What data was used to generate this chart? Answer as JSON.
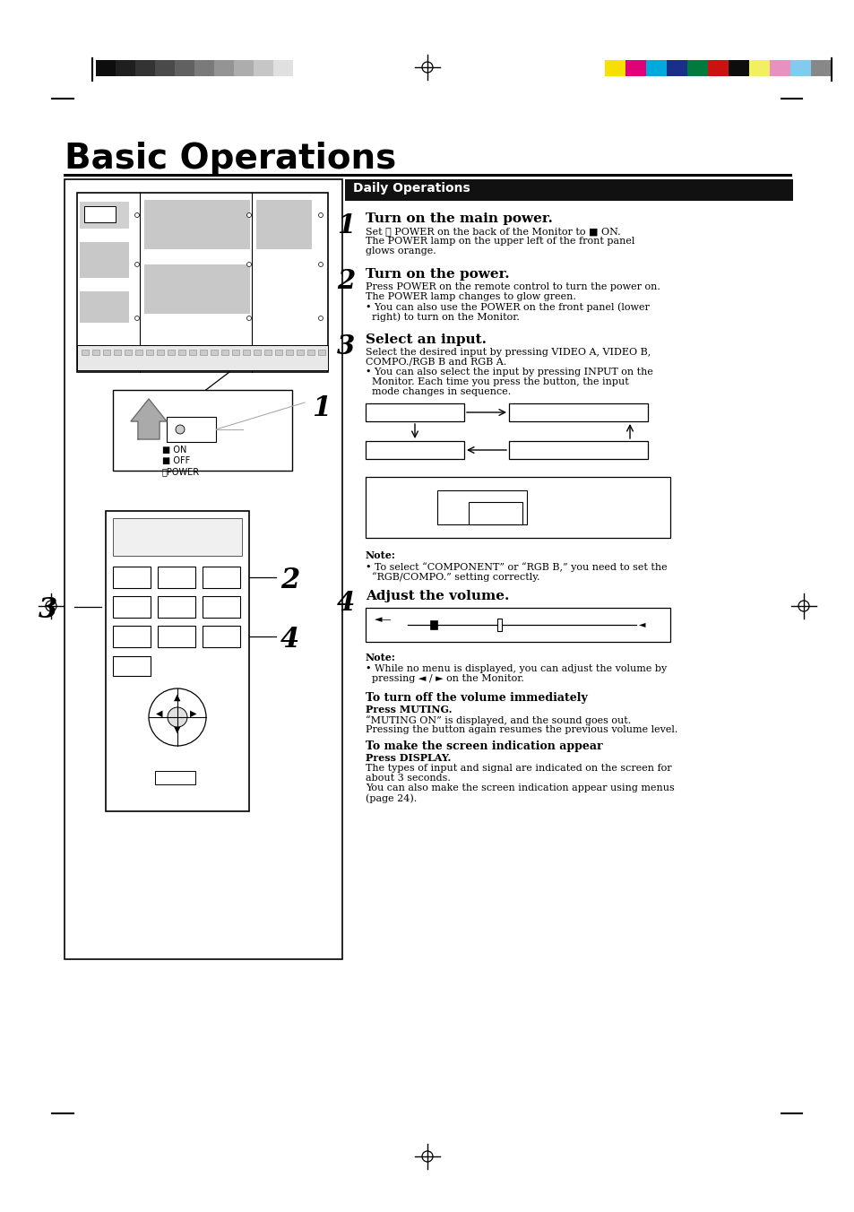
{
  "page_bg": "#ffffff",
  "title": "Basic Operations",
  "section_header": "Daily Operations",
  "section_header_bg": "#111111",
  "section_header_color": "#ffffff",
  "grayscale_colors": [
    "#0d0d0d",
    "#1f1f1f",
    "#333333",
    "#4a4a4a",
    "#616161",
    "#7a7a7a",
    "#949494",
    "#adadad",
    "#c6c6c6",
    "#e0e0e0"
  ],
  "color_bars": [
    "#f5e000",
    "#e0007a",
    "#00aadd",
    "#1a2f8a",
    "#007a3d",
    "#cc1111",
    "#0d0d0d",
    "#f0f060",
    "#e890c0",
    "#80ccee",
    "#888888"
  ],
  "steps": [
    {
      "num": "1",
      "heading": "Turn on the main power.",
      "body1": "Set ⓘ POWER on the back of the Monitor to ■ ON.",
      "body2": "The POWER lamp on the upper left of the front panel",
      "body3": "glows orange.",
      "body4": "",
      "body5": ""
    },
    {
      "num": "2",
      "heading": "Turn on the power.",
      "body1": "Press POWER on the remote control to turn the power on.",
      "body2": "The POWER lamp changes to glow green.",
      "body3": "• You can also use the POWER on the front panel (lower",
      "body4": "  right) to turn on the Monitor.",
      "body5": ""
    },
    {
      "num": "3",
      "heading": "Select an input.",
      "body1": "Select the desired input by pressing VIDEO A, VIDEO B,",
      "body2": "COMPO./RGB B and RGB A.",
      "body3": "• You can also select the input by pressing INPUT on the",
      "body4": "  Monitor. Each time you press the button, the input",
      "body5": "  mode changes in sequence."
    },
    {
      "num": "4",
      "heading": "Adjust the volume.",
      "body1": "",
      "body2": "",
      "body3": "",
      "body4": "",
      "body5": ""
    }
  ]
}
